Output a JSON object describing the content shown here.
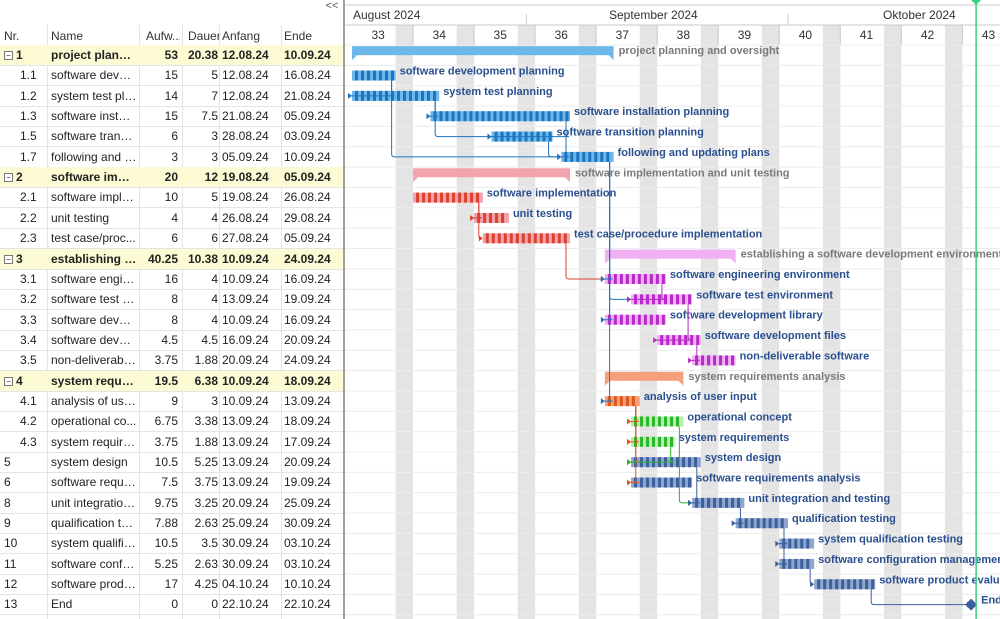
{
  "ui": {
    "collapse_label": "<<"
  },
  "columns": {
    "nr": "Nr.",
    "name": "Name",
    "aufwand": "Aufw...",
    "dauer": "Dauer",
    "anfang": "Anfang",
    "ende": "Ende"
  },
  "months": [
    {
      "label": "August 2024"
    },
    {
      "label": "September 2024"
    },
    {
      "label": "Oktober 2024"
    }
  ],
  "weeks": [
    "33",
    "34",
    "35",
    "36",
    "37",
    "38",
    "39",
    "40",
    "41",
    "42",
    "43"
  ],
  "rows": [
    {
      "nr": "1",
      "name": "project planni...",
      "aufwand": "53",
      "dauer": "20.38",
      "anfang": "12.08.24",
      "ende": "10.09.24",
      "summary": true,
      "label": "project planning and oversight"
    },
    {
      "nr": "1.1",
      "name": "software devel...",
      "aufwand": "15",
      "dauer": "5",
      "anfang": "12.08.24",
      "ende": "16.08.24",
      "label": "software development planning"
    },
    {
      "nr": "1.2",
      "name": "system test pla...",
      "aufwand": "14",
      "dauer": "7",
      "anfang": "12.08.24",
      "ende": "21.08.24",
      "label": "system test planning"
    },
    {
      "nr": "1.3",
      "name": "software install...",
      "aufwand": "15",
      "dauer": "7.5",
      "anfang": "21.08.24",
      "ende": "05.09.24",
      "label": "software installation planning"
    },
    {
      "nr": "1.5",
      "name": "software transit...",
      "aufwand": "6",
      "dauer": "3",
      "anfang": "28.08.24",
      "ende": "03.09.24",
      "label": "software transition planning"
    },
    {
      "nr": "1.7",
      "name": "following and u...",
      "aufwand": "3",
      "dauer": "3",
      "anfang": "05.09.24",
      "ende": "10.09.24",
      "label": "following and updating plans"
    },
    {
      "nr": "2",
      "name": "software impl...",
      "aufwand": "20",
      "dauer": "12",
      "anfang": "19.08.24",
      "ende": "05.09.24",
      "summary": true,
      "label": "software implementation and unit testing"
    },
    {
      "nr": "2.1",
      "name": "software imple...",
      "aufwand": "10",
      "dauer": "5",
      "anfang": "19.08.24",
      "ende": "26.08.24",
      "label": "software implementation"
    },
    {
      "nr": "2.2",
      "name": "unit testing",
      "aufwand": "4",
      "dauer": "4",
      "anfang": "26.08.24",
      "ende": "29.08.24",
      "label": "unit testing"
    },
    {
      "nr": "2.3",
      "name": "test case/proc...",
      "aufwand": "6",
      "dauer": "6",
      "anfang": "27.08.24",
      "ende": "05.09.24",
      "label": "test case/procedure implementation"
    },
    {
      "nr": "3",
      "name": "establishing a...",
      "aufwand": "40.25",
      "dauer": "10.38",
      "anfang": "10.09.24",
      "ende": "24.09.24",
      "summary": true,
      "label": "establishing a software development environment"
    },
    {
      "nr": "3.1",
      "name": "software engin...",
      "aufwand": "16",
      "dauer": "4",
      "anfang": "10.09.24",
      "ende": "16.09.24",
      "label": "software engineering environment"
    },
    {
      "nr": "3.2",
      "name": "software test e...",
      "aufwand": "8",
      "dauer": "4",
      "anfang": "13.09.24",
      "ende": "19.09.24",
      "label": "software test environment"
    },
    {
      "nr": "3.3",
      "name": "software devel...",
      "aufwand": "8",
      "dauer": "4",
      "anfang": "10.09.24",
      "ende": "16.09.24",
      "label": "software development library"
    },
    {
      "nr": "3.4",
      "name": "software devel...",
      "aufwand": "4.5",
      "dauer": "4.5",
      "anfang": "16.09.24",
      "ende": "20.09.24",
      "label": "software development files"
    },
    {
      "nr": "3.5",
      "name": "non-deliverable...",
      "aufwand": "3.75",
      "dauer": "1.88",
      "anfang": "20.09.24",
      "ende": "24.09.24",
      "label": "non-deliverable software"
    },
    {
      "nr": "4",
      "name": "system requir...",
      "aufwand": "19.5",
      "dauer": "6.38",
      "anfang": "10.09.24",
      "ende": "18.09.24",
      "summary": true,
      "label": "system requirements analysis"
    },
    {
      "nr": "4.1",
      "name": "analysis of use...",
      "aufwand": "9",
      "dauer": "3",
      "anfang": "10.09.24",
      "ende": "13.09.24",
      "label": "analysis of user input"
    },
    {
      "nr": "4.2",
      "name": "operational co...",
      "aufwand": "6.75",
      "dauer": "3.38",
      "anfang": "13.09.24",
      "ende": "18.09.24",
      "label": "operational concept"
    },
    {
      "nr": "4.3",
      "name": "system require...",
      "aufwand": "3.75",
      "dauer": "1.88",
      "anfang": "13.09.24",
      "ende": "17.09.24",
      "label": "system requirements"
    },
    {
      "nr": "5",
      "name": "system design",
      "aufwand": "10.5",
      "dauer": "5.25",
      "anfang": "13.09.24",
      "ende": "20.09.24",
      "label": "system design"
    },
    {
      "nr": "6",
      "name": "software requir...",
      "aufwand": "7.5",
      "dauer": "3.75",
      "anfang": "13.09.24",
      "ende": "19.09.24",
      "label": "software requirements analysis"
    },
    {
      "nr": "8",
      "name": "unit integration ...",
      "aufwand": "9.75",
      "dauer": "3.25",
      "anfang": "20.09.24",
      "ende": "25.09.24",
      "label": "unit integration and testing"
    },
    {
      "nr": "9",
      "name": "qualification te...",
      "aufwand": "7.88",
      "dauer": "2.63",
      "anfang": "25.09.24",
      "ende": "30.09.24",
      "label": "qualification testing"
    },
    {
      "nr": "10",
      "name": "system qualific...",
      "aufwand": "10.5",
      "dauer": "3.5",
      "anfang": "30.09.24",
      "ende": "03.10.24",
      "label": "system qualification testing"
    },
    {
      "nr": "11",
      "name": "software config...",
      "aufwand": "5.25",
      "dauer": "2.63",
      "anfang": "30.09.24",
      "ende": "03.10.24",
      "label": "software configuration management"
    },
    {
      "nr": "12",
      "name": "software produ...",
      "aufwand": "17",
      "dauer": "4.25",
      "anfang": "04.10.24",
      "ende": "10.10.24",
      "label": "software product evaluation"
    },
    {
      "nr": "13",
      "name": "End",
      "aufwand": "0",
      "dauer": "0",
      "anfang": "22.10.24",
      "ende": "22.10.24",
      "milestone": true,
      "label": "End"
    }
  ],
  "colors": {
    "blue": "#6cb8ea",
    "blue_dark": "#1f74c0",
    "red": "#f3a3ab",
    "red_dark": "#d9432f",
    "purple": "#f0b0f4",
    "purple_dark": "#b62ac7",
    "orange": "#f5a07a",
    "orange_dark": "#e05818",
    "green": "#b6eeb0",
    "green_dark": "#2ab52a",
    "steel": "#8fa6cc",
    "steel_dark": "#3c5f9e",
    "label_text": "#2a4f8e",
    "summary_label": "#7a7a7a",
    "today_line": "#3bcf7f",
    "summary_row": "#fdfbd4"
  }
}
